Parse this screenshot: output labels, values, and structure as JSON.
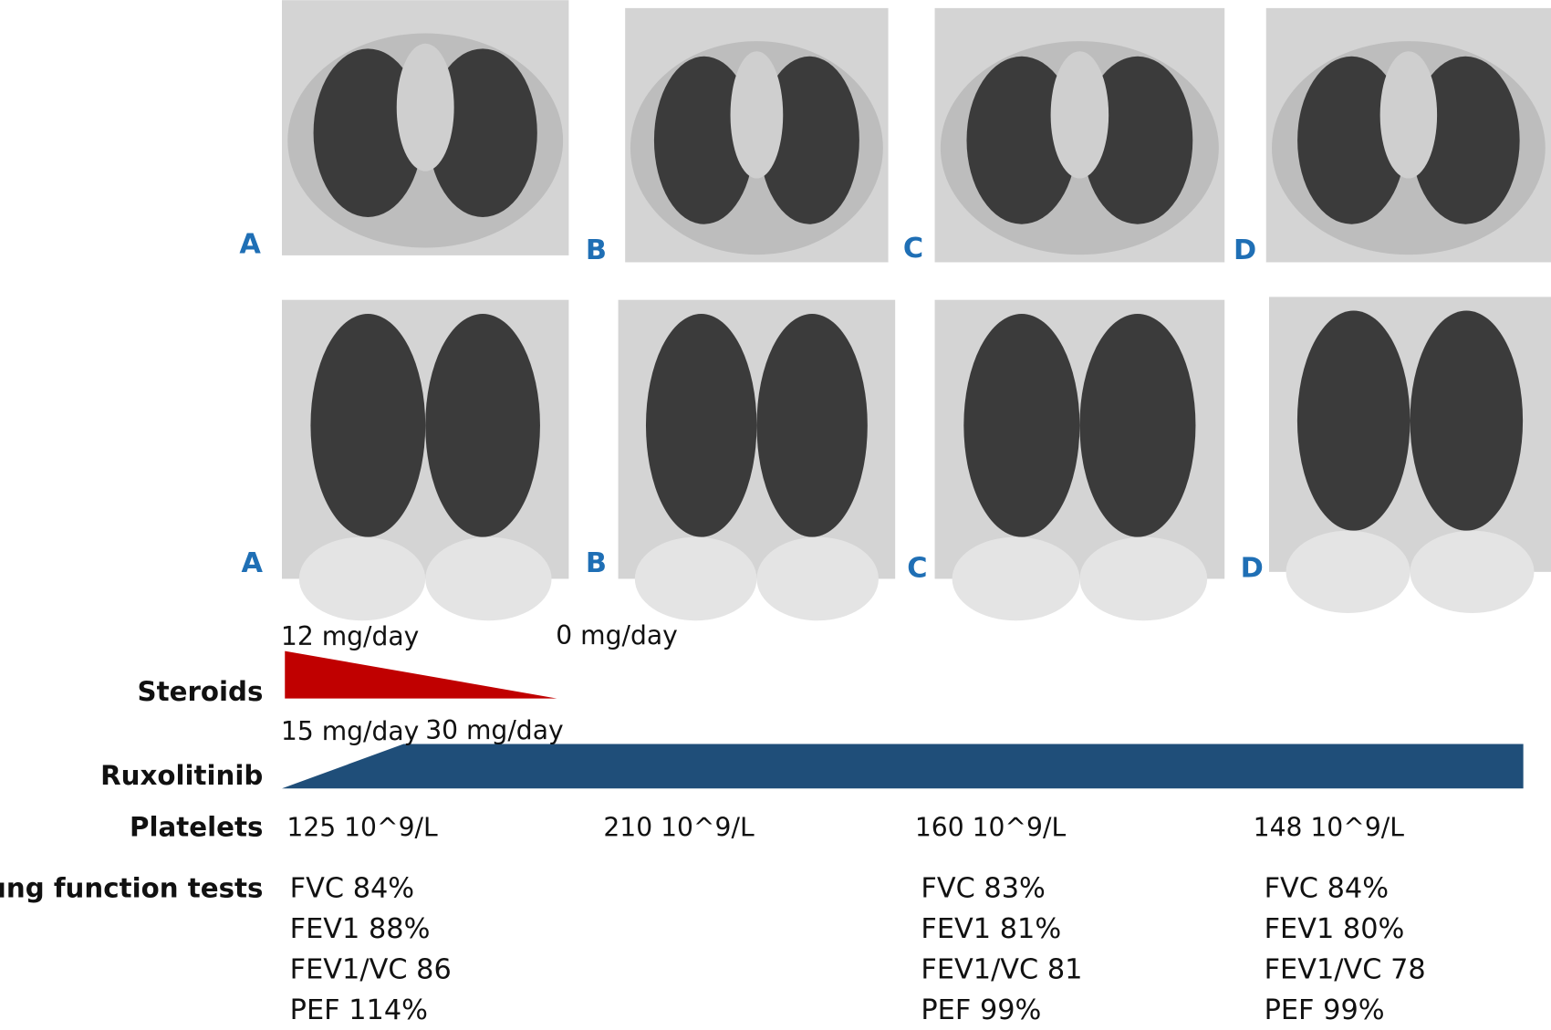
{
  "panels": {
    "axial_labels": [
      "A",
      "B",
      "C",
      "D"
    ],
    "coronal_labels": [
      "A",
      "B",
      "C",
      "D"
    ]
  },
  "timeline": {
    "steroids": {
      "label": "Steroids",
      "start_dose": "12 mg/day",
      "end_dose": "0 mg/day"
    },
    "ruxolitinib": {
      "label": "Ruxolitinib",
      "start_dose": "15 mg/day",
      "next_dose": "30 mg/day"
    },
    "platelets": {
      "label": "Platelets",
      "values": [
        "125 10^9/L",
        "210 10^9/L",
        "160 10^9/L",
        "148 10^9/L"
      ]
    },
    "lung_function": {
      "label": "Lung function tests",
      "columns": [
        [
          "FVC 84%",
          "FEV1 88%",
          "FEV1/VC 86",
          "PEF 114%"
        ],
        [
          "FVC 83%",
          "FEV1 81%",
          "FEV1/VC 81",
          "PEF 99%"
        ],
        [
          "FVC 84%",
          "FEV1 80%",
          "FEV1/VC 78",
          "PEF 99%"
        ]
      ]
    }
  }
}
